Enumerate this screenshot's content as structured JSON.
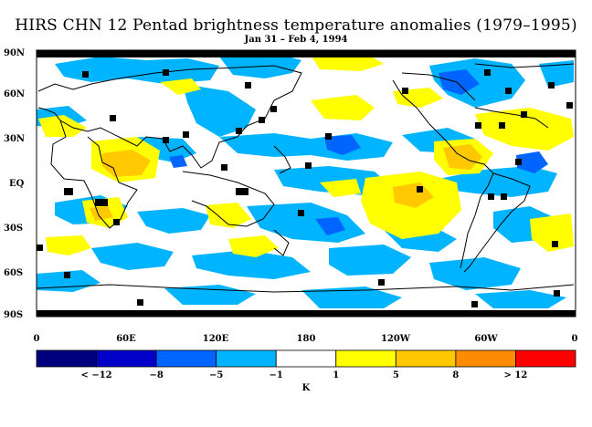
{
  "title": "HIRS CHN 12 Pentad brightness temperature anomalies (1979–1995)",
  "subtitle": "Jan 31 – Feb 4, 1994",
  "lat_labels": [
    "90N",
    "60N",
    "30N",
    "EQ",
    "30S",
    "60S",
    "90S"
  ],
  "lon_labels": [
    "0",
    "60E",
    "120E",
    "180",
    "120W",
    "60W",
    "0"
  ],
  "colorbar": {
    "colors": [
      "#00007f",
      "#0000c8",
      "#0064ff",
      "#00b4ff",
      "#ffffff",
      "#ffff00",
      "#ffc800",
      "#ff8c00",
      "#ff0000"
    ],
    "labels": [
      "< −12",
      "−8",
      "−5",
      "−1",
      "1",
      "5",
      "8",
      "> 12"
    ],
    "unit": "K"
  },
  "map_colors": {
    "cold_light": "#00b4ff",
    "cold_mid": "#0064ff",
    "warm_light": "#ffff00",
    "warm_mid": "#ffc800",
    "missing": "#000000"
  }
}
